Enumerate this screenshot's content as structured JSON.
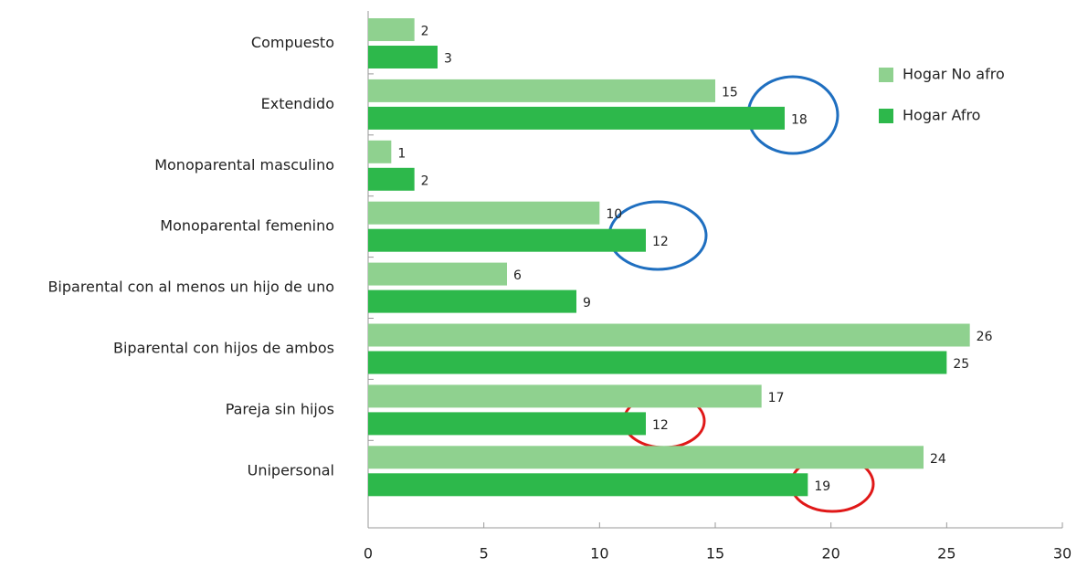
{
  "chart_data": {
    "type": "bar",
    "orientation": "horizontal",
    "categories": [
      "Compuesto",
      "Extendido",
      "Monoparental masculino",
      "Monoparental femenino",
      "Biparental con al menos un hijo de uno",
      "Biparental con hijos de ambos",
      "Pareja sin hijos",
      "Unipersonal"
    ],
    "series": [
      {
        "name": "Hogar No afro",
        "color": "#8fd18f",
        "values": [
          2,
          15,
          1,
          10,
          6,
          26,
          17,
          24
        ]
      },
      {
        "name": "Hogar Afro",
        "color": "#2db84b",
        "values": [
          3,
          18,
          2,
          12,
          9,
          25,
          12,
          19
        ]
      }
    ],
    "xlim": [
      0,
      30
    ],
    "xticks": [
      0,
      5,
      10,
      15,
      20,
      25,
      30
    ],
    "legend": "upper right"
  }
}
